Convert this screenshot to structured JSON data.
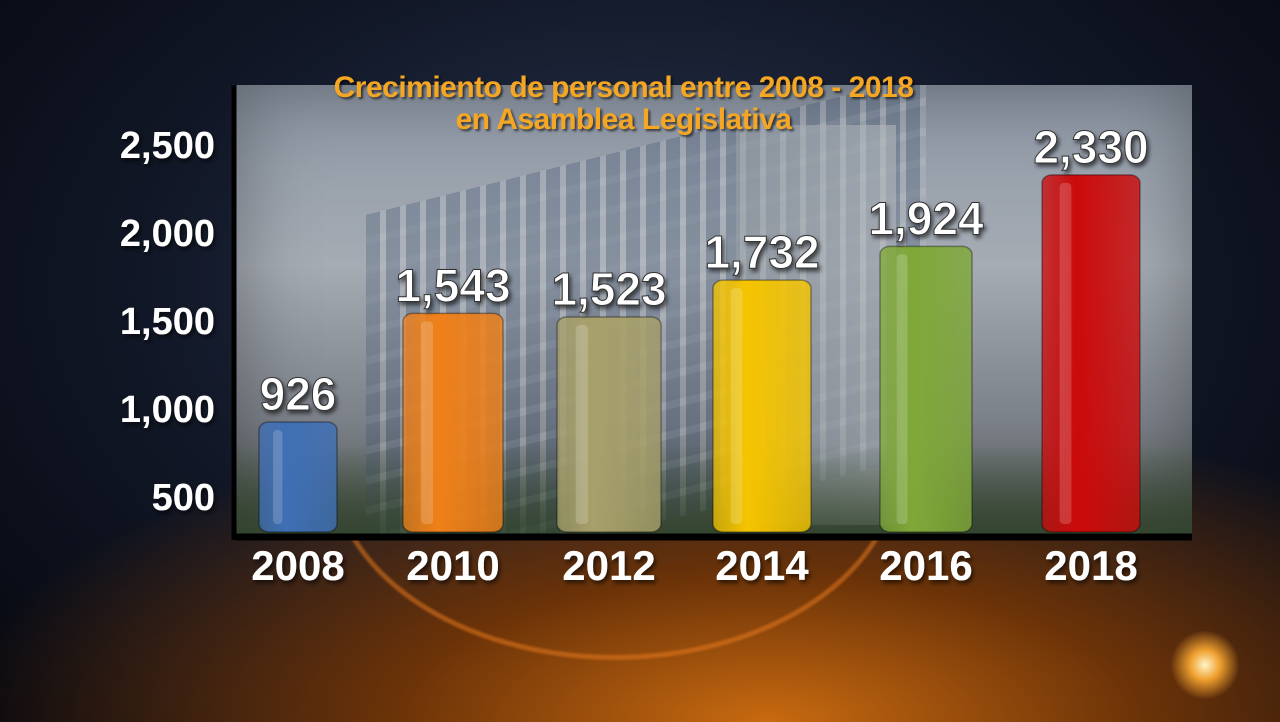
{
  "chart_data": {
    "type": "bar",
    "title_line1": "Crecimiento de personal entre 2008 - 2018",
    "title_line2": "en Asamblea Legislativa",
    "categories": [
      "2008",
      "2010",
      "2012",
      "2014",
      "2016",
      "2018"
    ],
    "values": [
      926,
      1543,
      1523,
      1732,
      1924,
      2330
    ],
    "value_labels": [
      "926",
      "1,543",
      "1,523",
      "1,732",
      "1,924",
      "2,330"
    ],
    "colors": [
      "#3f6fb5",
      "#f08018",
      "#a8a06a",
      "#f5c400",
      "#7fa838",
      "#cc0a0a"
    ],
    "yticks": [
      "2,500",
      "2,000",
      "1,500",
      "1,000",
      "500"
    ],
    "ytick_values": [
      2500,
      2000,
      1500,
      1000,
      500
    ],
    "xlabel": "",
    "ylabel": "",
    "grid": false
  }
}
